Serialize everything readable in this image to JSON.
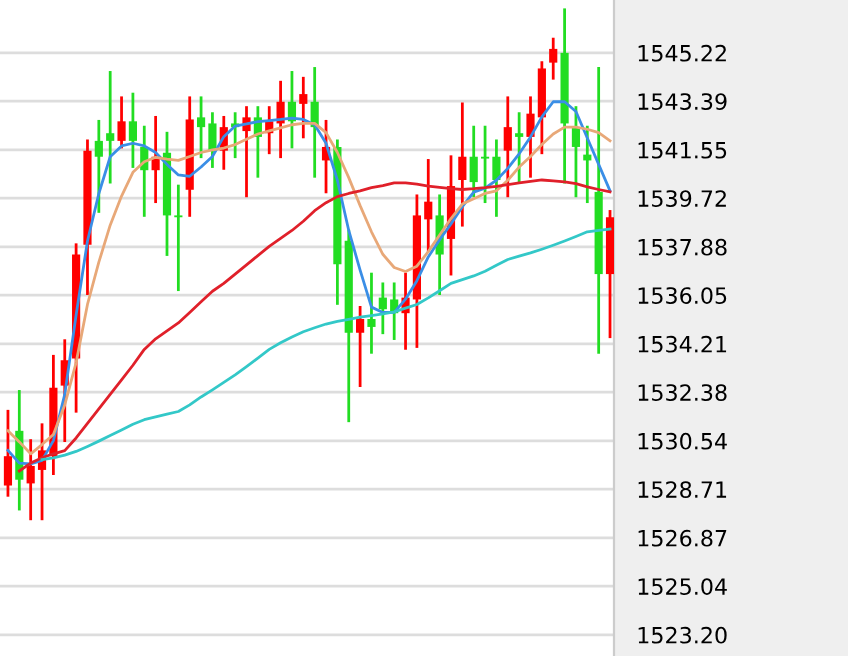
{
  "chart_data": {
    "type": "candlestick",
    "categories": [
      null,
      null,
      null,
      null,
      null,
      null,
      null,
      null,
      null,
      null,
      null,
      null,
      null,
      null,
      null,
      null,
      null,
      null,
      null,
      null,
      null,
      null,
      null,
      null,
      null,
      null,
      null,
      null,
      null,
      null,
      null,
      null,
      null,
      null,
      null,
      null,
      null,
      null,
      null,
      null,
      null,
      null,
      null,
      null,
      null,
      null,
      null,
      null,
      null,
      null,
      null,
      null,
      null,
      null
    ],
    "ohlc": [
      [
        1528.85,
        1531.66,
        1528.48,
        1529.96
      ],
      [
        1530.92,
        1532.41,
        1527.96,
        1529.07
      ],
      [
        1528.93,
        1530.55,
        1527.59,
        1529.59
      ],
      [
        1529.44,
        1531.15,
        1527.59,
        1530.18
      ],
      [
        1529.96,
        1533.74,
        1529.3,
        1532.55
      ],
      [
        1532.63,
        1534.33,
        1530.55,
        1533.59
      ],
      [
        1533.66,
        1537.96,
        1531.66,
        1537.59
      ],
      [
        1537.96,
        1541.89,
        1536.11,
        1541.52
      ],
      [
        1541.89,
        1542.63,
        1539.22,
        1541.29
      ],
      [
        1542.18,
        1544.48,
        1540.33,
        1541.89
      ],
      [
        1541.89,
        1543.52,
        1541.66,
        1542.63
      ],
      [
        1542.63,
        1543.66,
        1540.92,
        1541.89
      ],
      [
        1541.66,
        1542.41,
        1539.07,
        1540.78
      ],
      [
        1540.78,
        1542.78,
        1539.59,
        1541.29
      ],
      [
        1541.44,
        1542.18,
        1537.59,
        1539.07
      ],
      [
        1539.07,
        1540.18,
        1536.26,
        1539.0
      ],
      [
        1540.04,
        1543.52,
        1539.07,
        1542.7
      ],
      [
        1542.78,
        1543.52,
        1541.29,
        1542.41
      ],
      [
        1542.55,
        1542.92,
        1540.92,
        1541.52
      ],
      [
        1541.52,
        1542.78,
        1540.85,
        1542.41
      ],
      [
        1542.55,
        1542.92,
        1541.29,
        1542.41
      ],
      [
        1542.26,
        1543.15,
        1539.81,
        1542.78
      ],
      [
        1542.78,
        1543.15,
        1540.55,
        1542.04
      ],
      [
        1542.18,
        1543.15,
        1541.44,
        1542.63
      ],
      [
        1542.55,
        1544.11,
        1541.29,
        1543.37
      ],
      [
        1543.37,
        1544.48,
        1541.66,
        1542.63
      ],
      [
        1543.29,
        1544.26,
        1542.04,
        1543.66
      ],
      [
        1543.37,
        1544.63,
        1540.55,
        1542.41
      ],
      [
        1541.15,
        1542.63,
        1539.96,
        1541.66
      ],
      [
        1541.66,
        1541.89,
        1535.74,
        1537.22
      ],
      [
        1538.11,
        1538.48,
        1531.3,
        1534.63
      ],
      [
        1534.63,
        1535.59,
        1532.63,
        1535.15
      ],
      [
        1535.15,
        1536.85,
        1533.89,
        1534.85
      ],
      [
        1535.96,
        1536.48,
        1534.63,
        1535.52
      ],
      [
        1535.89,
        1536.48,
        1534.41,
        1535.37
      ],
      [
        1535.37,
        1536.85,
        1534.04,
        1535.96
      ],
      [
        1535.89,
        1539.81,
        1534.11,
        1539.07
      ],
      [
        1538.92,
        1541.15,
        1537.74,
        1539.59
      ],
      [
        1539.07,
        1539.81,
        1536.11,
        1537.59
      ],
      [
        1538.18,
        1541.29,
        1536.85,
        1540.18
      ],
      [
        1540.41,
        1543.29,
        1538.7,
        1541.29
      ],
      [
        1541.29,
        1542.41,
        1539.81,
        1540.33
      ],
      [
        1541.29,
        1542.41,
        1539.59,
        1541.22
      ],
      [
        1541.29,
        1541.89,
        1539.07,
        1540.41
      ],
      [
        1541.52,
        1543.52,
        1539.81,
        1542.41
      ],
      [
        1542.18,
        1542.92,
        1540.33,
        1542.04
      ],
      [
        1542.04,
        1543.52,
        1540.55,
        1542.92
      ],
      [
        1542.78,
        1544.85,
        1541.44,
        1544.63
      ],
      [
        1544.85,
        1545.74,
        1544.26,
        1545.37
      ],
      [
        1545.22,
        1546.85,
        1540.33,
        1542.55
      ],
      [
        1542.41,
        1543.15,
        1539.81,
        1541.66
      ],
      [
        1541.37,
        1542.41,
        1539.59,
        1541.15
      ],
      [
        1539.96,
        1544.63,
        1533.89,
        1536.85
      ],
      [
        1536.85,
        1539.22,
        1534.48,
        1539.0
      ]
    ],
    "colors": [
      "#ff0000",
      "#22dd22",
      "#ff0000",
      "#ff0000",
      "#ff0000",
      "#ff0000",
      "#ff0000",
      "#ff0000",
      "#22dd22",
      "#22dd22",
      "#ff0000",
      "#22dd22",
      "#22dd22",
      "#ff0000",
      "#22dd22",
      "#22dd22",
      "#ff0000",
      "#22dd22",
      "#22dd22",
      "#ff0000",
      "#22dd22",
      "#ff0000",
      "#22dd22",
      "#ff0000",
      "#ff0000",
      "#22dd22",
      "#ff0000",
      "#22dd22",
      "#ff0000",
      "#22dd22",
      "#22dd22",
      "#ff0000",
      "#22dd22",
      "#22dd22",
      "#22dd22",
      "#ff0000",
      "#ff0000",
      "#ff0000",
      "#22dd22",
      "#ff0000",
      "#ff0000",
      "#22dd22",
      "#22dd22",
      "#22dd22",
      "#ff0000",
      "#22dd22",
      "#ff0000",
      "#ff0000",
      "#ff0000",
      "#22dd22",
      "#22dd22",
      "#22dd22",
      "#22dd22",
      "#ff0000"
    ],
    "series": [
      {
        "type": "line",
        "color": "#3a8ee6",
        "values": [
          1530.18,
          1529.7,
          1529.67,
          1529.8,
          1530.55,
          1532.3,
          1535.3,
          1538.1,
          1539.9,
          1541.29,
          1541.7,
          1541.8,
          1541.7,
          1541.45,
          1541.0,
          1540.6,
          1540.55,
          1540.9,
          1541.3,
          1542.05,
          1542.45,
          1542.53,
          1542.62,
          1542.66,
          1542.7,
          1542.75,
          1542.7,
          1542.5,
          1541.8,
          1540.4,
          1538.5,
          1537.0,
          1535.6,
          1535.4,
          1535.4,
          1535.9,
          1536.6,
          1537.5,
          1538.15,
          1538.75,
          1539.4,
          1539.95,
          1540.1,
          1540.4,
          1540.85,
          1541.4,
          1542.04,
          1542.8,
          1543.37,
          1543.37,
          1543.0,
          1542.0,
          1541.0,
          1540.0
        ]
      },
      {
        "type": "line",
        "color": "#e8a878",
        "values": [
          1530.92,
          1530.5,
          1530.05,
          1530.4,
          1530.78,
          1531.9,
          1533.5,
          1535.7,
          1537.3,
          1538.7,
          1539.8,
          1540.7,
          1541.1,
          1541.27,
          1541.2,
          1541.15,
          1541.3,
          1541.45,
          1541.55,
          1541.62,
          1541.75,
          1541.95,
          1542.15,
          1542.27,
          1542.38,
          1542.5,
          1542.55,
          1542.55,
          1542.2,
          1541.45,
          1540.5,
          1539.44,
          1538.45,
          1537.6,
          1537.1,
          1536.95,
          1537.15,
          1537.7,
          1538.33,
          1538.95,
          1539.5,
          1539.7,
          1539.9,
          1540.0,
          1540.4,
          1540.9,
          1541.3,
          1541.75,
          1542.15,
          1542.41,
          1542.41,
          1542.33,
          1542.2,
          1541.89
        ]
      },
      {
        "type": "line",
        "color": "#e0202a",
        "values": [
          null,
          1529.4,
          1529.7,
          1529.9,
          1530.05,
          1530.17,
          1530.65,
          1531.2,
          1531.75,
          1532.3,
          1532.85,
          1533.4,
          1534.0,
          1534.4,
          1534.7,
          1535.0,
          1535.4,
          1535.8,
          1536.2,
          1536.5,
          1536.85,
          1537.2,
          1537.55,
          1537.9,
          1538.2,
          1538.5,
          1538.85,
          1539.25,
          1539.55,
          1539.78,
          1539.9,
          1540.0,
          1540.12,
          1540.2,
          1540.3,
          1540.3,
          1540.25,
          1540.18,
          1540.13,
          1540.08,
          1540.05,
          1540.08,
          1540.12,
          1540.17,
          1540.23,
          1540.3,
          1540.36,
          1540.41,
          1540.38,
          1540.34,
          1540.27,
          1540.15,
          1540.05,
          1539.96
        ]
      },
      {
        "type": "line",
        "color": "#33c8c8",
        "values": [
          null,
          null,
          null,
          1529.83,
          1529.9,
          1530.0,
          1530.14,
          1530.33,
          1530.53,
          1530.74,
          1530.95,
          1531.17,
          1531.34,
          1531.45,
          1531.55,
          1531.65,
          1531.9,
          1532.2,
          1532.47,
          1532.75,
          1533.04,
          1533.35,
          1533.67,
          1534.0,
          1534.25,
          1534.47,
          1534.67,
          1534.82,
          1534.96,
          1535.06,
          1535.14,
          1535.22,
          1535.28,
          1535.34,
          1535.42,
          1535.56,
          1535.7,
          1535.95,
          1536.22,
          1536.5,
          1536.64,
          1536.78,
          1536.96,
          1537.18,
          1537.4,
          1537.53,
          1537.65,
          1537.79,
          1537.94,
          1538.1,
          1538.27,
          1538.45,
          1538.5,
          1538.55
        ]
      }
    ],
    "ylim": [
      1522.4,
      1547.22
    ],
    "yticks": [
      1545.22,
      1543.39,
      1541.55,
      1539.72,
      1537.88,
      1536.05,
      1534.21,
      1532.38,
      1530.54,
      1528.71,
      1526.87,
      1525.04,
      {
        "value": 1523.2,
        "label": "1523.20"
      }
    ],
    "grid": "y",
    "tick_labels": "y"
  }
}
